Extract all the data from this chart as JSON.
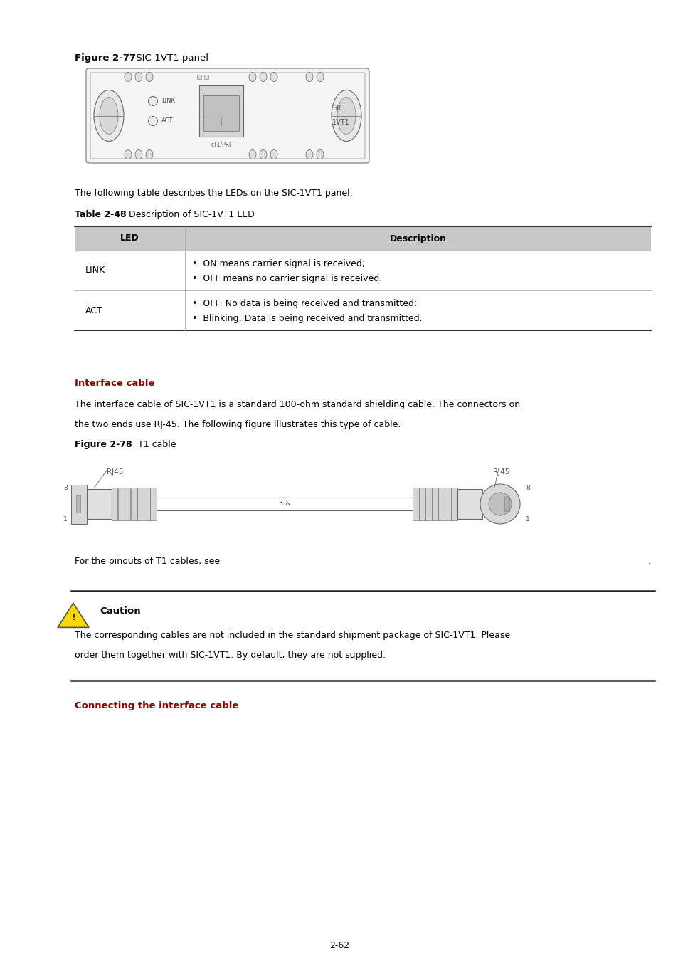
{
  "fig_width": 9.54,
  "fig_height": 13.5,
  "dpi": 100,
  "bg_color": "#ffffff",
  "text_color": "#000000",
  "red_color": "#8b0000",
  "figure_label_77": "Figure 2-77",
  "figure_label_77_rest": " SIC-1VT1 panel",
  "table_intro": "The following table describes the LEDs on the SIC-1VT1 panel.",
  "table_label": "Table 2-48",
  "table_label_rest": " Description of SIC-1VT1 LED",
  "table_header_col1": "LED",
  "table_header_col2": "Description",
  "row1_key": "LINK",
  "row1_val1": "•  ON means carrier signal is received;",
  "row1_val2": "•  OFF means no carrier signal is received.",
  "row2_key": "ACT",
  "row2_val1": "•  OFF: No data is being received and transmitted;",
  "row2_val2": "•  Blinking: Data is being received and transmitted.",
  "section_interface": "Interface cable",
  "para_interface_1": "The interface cable of SIC-1VT1 is a standard 100-ohm standard shielding cable. The connectors on",
  "para_interface_2": "the two ends use RJ-45. The following figure illustrates this type of cable.",
  "figure_label_78": "Figure 2-78",
  "figure_label_78_rest": " T1 cable",
  "rj45_left_label": "RJ45",
  "rj45_right_label": "RJ45",
  "cable_mid_label": "3 &",
  "num_8": "8",
  "num_1": "1",
  "pinout_text": "For the pinouts of T1 cables, see",
  "pinout_dot": ".",
  "caution_title": "Caution",
  "caution_text_1": "The corresponding cables are not included in the standard shipment package of SIC-1VT1. Please",
  "caution_text_2": "order them together with SIC-1VT1. By default, they are not supplied.",
  "section_connecting": "Connecting the interface cable",
  "page_number": "2-62",
  "lm": 1.05,
  "rm": 9.15
}
